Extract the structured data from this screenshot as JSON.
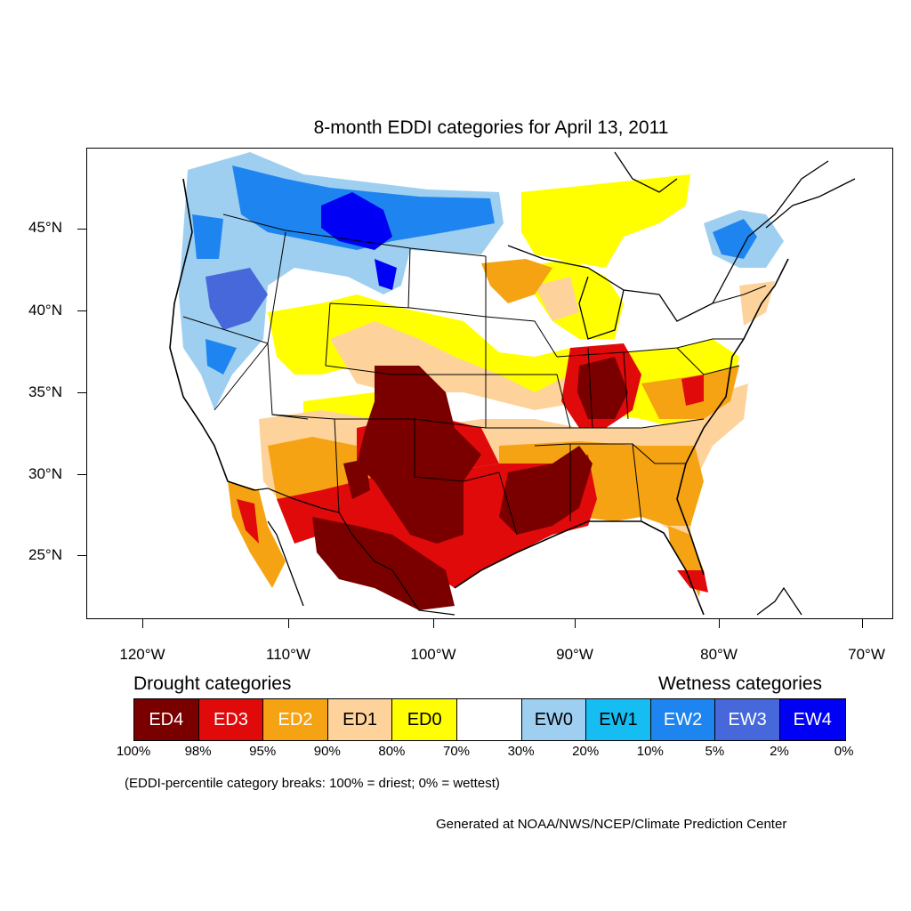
{
  "title": "8-month EDDI categories for April 13, 2011",
  "map": {
    "projection": "conus",
    "lat_labels": [
      "45°N",
      "40°N",
      "35°N",
      "30°N",
      "25°N"
    ],
    "lon_labels": [
      "120°W",
      "110°W",
      "100°W",
      "90°W",
      "80°W",
      "70°W"
    ]
  },
  "legend": {
    "drought_heading": "Drought categories",
    "wetness_heading": "Wetness categories",
    "categories": [
      {
        "label": "ED4",
        "color": "#7a0000",
        "text_color": "#ffffff"
      },
      {
        "label": "ED3",
        "color": "#e00a0a",
        "text_color": "#ffffff"
      },
      {
        "label": "ED2",
        "color": "#f6a313",
        "text_color": "#ffffff"
      },
      {
        "label": "ED1",
        "color": "#fdd39b",
        "text_color": "#000000"
      },
      {
        "label": "ED0",
        "color": "#ffff00",
        "text_color": "#000000"
      },
      {
        "label": "",
        "color": "#ffffff",
        "text_color": "#000000"
      },
      {
        "label": "EW0",
        "color": "#9ecff0",
        "text_color": "#000000"
      },
      {
        "label": "EW1",
        "color": "#15bdf2",
        "text_color": "#000000"
      },
      {
        "label": "EW2",
        "color": "#1e85f0",
        "text_color": "#ffffff"
      },
      {
        "label": "EW3",
        "color": "#4768da",
        "text_color": "#ffffff"
      },
      {
        "label": "EW4",
        "color": "#0000f5",
        "text_color": "#ffffff"
      }
    ],
    "percentiles": [
      "100%",
      "98%",
      "95%",
      "90%",
      "80%",
      "70%",
      "30%",
      "20%",
      "10%",
      "5%",
      "2%",
      "0%"
    ]
  },
  "note": "(EDDI-percentile category breaks: 100% = driest; 0% = wettest)",
  "credit": "Generated at NOAA/NWS/NCEP/Climate Prediction Center"
}
